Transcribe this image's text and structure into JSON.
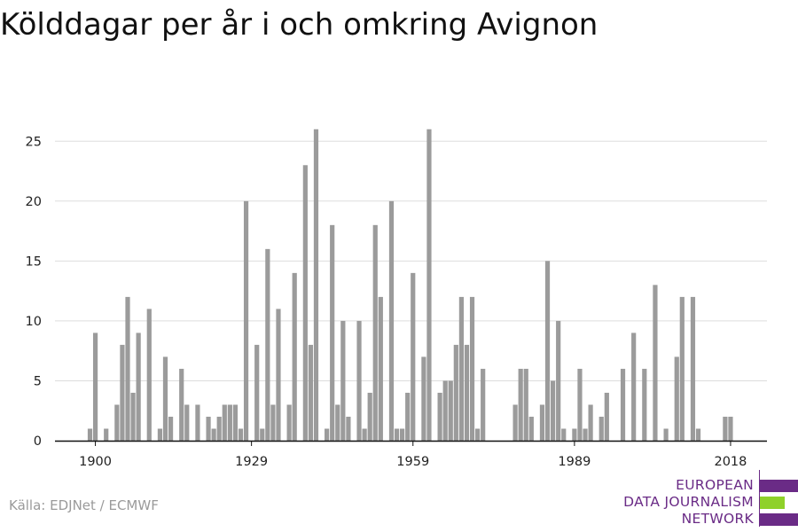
{
  "title": "Kölddagar per år i och omkring Avignon",
  "source": "Källa: EDJNet / ECMWF",
  "logo": {
    "lines": [
      "EUROPEAN",
      "DATA JOURNALISM",
      "NETWORK"
    ],
    "colors": {
      "purple": "#6a2b86",
      "green": "#8fd12a"
    }
  },
  "chart_data": {
    "type": "bar",
    "title": "Kölddagar per år i och omkring Avignon",
    "xlabel": "",
    "ylabel": "",
    "x_ticks": [
      1900,
      1929,
      1959,
      1989,
      2018
    ],
    "y_ticks": [
      0,
      5,
      10,
      15,
      20,
      25
    ],
    "ylim": [
      0,
      26.5
    ],
    "xlim": [
      1899,
      2019
    ],
    "grid": true,
    "bar_color": "#9b9b9b",
    "x": [
      1899,
      1900,
      1901,
      1902,
      1903,
      1904,
      1905,
      1906,
      1907,
      1908,
      1909,
      1910,
      1911,
      1912,
      1913,
      1914,
      1915,
      1916,
      1917,
      1918,
      1919,
      1920,
      1921,
      1922,
      1923,
      1924,
      1925,
      1926,
      1927,
      1928,
      1929,
      1930,
      1931,
      1932,
      1933,
      1934,
      1935,
      1936,
      1937,
      1938,
      1939,
      1940,
      1941,
      1942,
      1943,
      1944,
      1945,
      1946,
      1947,
      1948,
      1949,
      1950,
      1951,
      1952,
      1953,
      1954,
      1955,
      1956,
      1957,
      1958,
      1959,
      1960,
      1961,
      1962,
      1963,
      1964,
      1965,
      1966,
      1967,
      1968,
      1969,
      1970,
      1971,
      1972,
      1973,
      1974,
      1975,
      1976,
      1977,
      1978,
      1979,
      1980,
      1981,
      1982,
      1983,
      1984,
      1985,
      1986,
      1987,
      1988,
      1989,
      1990,
      1991,
      1992,
      1993,
      1994,
      1995,
      1996,
      1997,
      1998,
      1999,
      2000,
      2001,
      2002,
      2003,
      2004,
      2005,
      2006,
      2007,
      2008,
      2009,
      2010,
      2011,
      2012,
      2013,
      2014,
      2015,
      2016,
      2017,
      2018
    ],
    "values": [
      1,
      9,
      0,
      1,
      0,
      3,
      8,
      12,
      4,
      9,
      0,
      11,
      0,
      1,
      7,
      2,
      0,
      6,
      3,
      0,
      3,
      0,
      2,
      1,
      2,
      3,
      3,
      3,
      1,
      20,
      0,
      8,
      1,
      16,
      3,
      11,
      0,
      3,
      14,
      0,
      23,
      8,
      26,
      0,
      1,
      18,
      3,
      10,
      2,
      0,
      10,
      1,
      4,
      18,
      12,
      0,
      20,
      1,
      1,
      4,
      14,
      0,
      7,
      26,
      0,
      4,
      5,
      5,
      8,
      12,
      8,
      12,
      1,
      6,
      0,
      0,
      0,
      0,
      0,
      3,
      6,
      6,
      2,
      0,
      3,
      15,
      5,
      10,
      1,
      0,
      1,
      6,
      1,
      3,
      0,
      2,
      4,
      0,
      0,
      6,
      0,
      9,
      0,
      6,
      0,
      13,
      0,
      1,
      0,
      7,
      12,
      0,
      12,
      1,
      0,
      0,
      0,
      0,
      2,
      2
    ]
  }
}
